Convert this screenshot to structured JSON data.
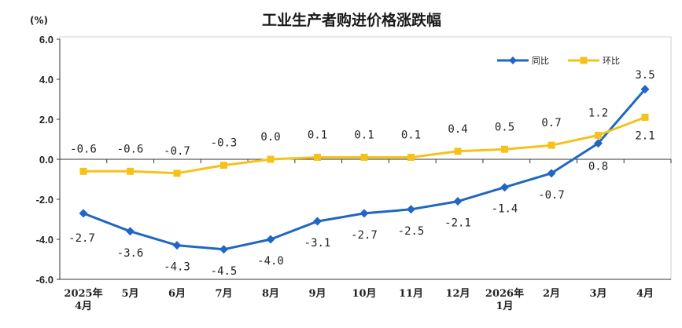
{
  "colors": {
    "yoy": "#1f66c5",
    "mom": "#f5c21b",
    "axis": "#333333",
    "frame": "#cfcfcf"
  },
  "chart_data": {
    "type": "line",
    "title": "工业生产者购进价格涨跌幅",
    "unit": "(%)",
    "categories": [
      [
        "2025年",
        "4月"
      ],
      [
        "5月"
      ],
      [
        "6月"
      ],
      [
        "7月"
      ],
      [
        "8月"
      ],
      [
        "9月"
      ],
      [
        "10月"
      ],
      [
        "11月"
      ],
      [
        "12月"
      ],
      [
        "2026年",
        "1月"
      ],
      [
        "2月"
      ],
      [
        "3月"
      ],
      [
        "4月"
      ]
    ],
    "ylim": [
      -6,
      6
    ],
    "yticks": [
      "6.0",
      "4.0",
      "2.0",
      "0.0",
      "-2.0",
      "-4.0",
      "-6.0"
    ],
    "legend_position": "top-right",
    "series": [
      {
        "name": "同比",
        "values": [
          -2.7,
          -3.6,
          -4.3,
          -4.5,
          -4.0,
          -3.1,
          -2.7,
          -2.5,
          -2.1,
          -1.4,
          -0.7,
          0.8,
          3.5
        ],
        "labels": [
          "-2.7",
          "-3.6",
          "-4.3",
          "-4.5",
          "-4.0",
          "-3.1",
          "-2.7",
          "-2.5",
          "-2.1",
          "-1.4",
          "-0.7",
          "0.8",
          "3.5"
        ]
      },
      {
        "name": "环比",
        "values": [
          -0.6,
          -0.6,
          -0.7,
          -0.3,
          0.0,
          0.1,
          0.1,
          0.1,
          0.4,
          0.5,
          0.7,
          1.2,
          2.1
        ],
        "labels": [
          "-0.6",
          "-0.6",
          "-0.7",
          "-0.3",
          "0.0",
          "0.1",
          "0.1",
          "0.1",
          "0.4",
          "0.5",
          "0.7",
          "1.2",
          "2.1"
        ]
      }
    ]
  }
}
